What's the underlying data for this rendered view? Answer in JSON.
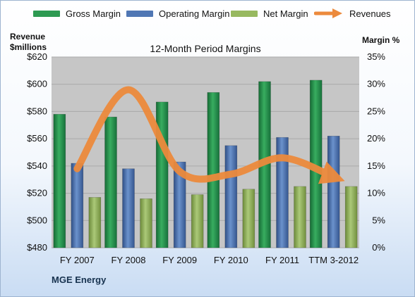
{
  "chart_data": {
    "type": "bar",
    "title": "12-Month Period Margins",
    "categories": [
      "FY 2007",
      "FY 2008",
      "FY 2009",
      "FY 2010",
      "FY 2011",
      "TTM 3-2012"
    ],
    "series": [
      {
        "name": "Gross Margin",
        "axis": "left",
        "values": [
          578,
          576,
          587,
          594,
          602,
          603
        ],
        "color": "#2e9a52"
      },
      {
        "name": "Operating Margin",
        "axis": "left",
        "values": [
          542,
          538,
          543,
          555,
          561,
          562
        ],
        "color": "#5077b4"
      },
      {
        "name": "Net Margin",
        "axis": "left",
        "values": [
          517,
          516,
          519,
          523,
          525,
          525
        ],
        "color": "#98b960"
      },
      {
        "name": "Revenues",
        "type": "line",
        "axis": "right",
        "values": [
          14.5,
          29,
          14,
          13.5,
          16.5,
          13
        ],
        "color": "#ec8a3c"
      }
    ],
    "y_left": {
      "label": "Revenue $millions",
      "ylim": [
        480,
        620
      ],
      "ticks": [
        "$480",
        "$500",
        "$520",
        "$540",
        "$560",
        "$580",
        "$600",
        "$620"
      ]
    },
    "y_right": {
      "label": "Margin %",
      "ylim": [
        0,
        35
      ],
      "ticks": [
        "0%",
        "5%",
        "10%",
        "15%",
        "20%",
        "25%",
        "30%",
        "35%"
      ]
    },
    "grid": true,
    "legend_position": "top"
  },
  "labels": {
    "y_left_title_line1": "Revenue",
    "y_left_title_line2": "$millions",
    "y_right_title": "Margin %",
    "company": "MGE Energy"
  },
  "colors": {
    "plot_background": "#c6c6c6",
    "gridline": "#a9a9a9"
  }
}
